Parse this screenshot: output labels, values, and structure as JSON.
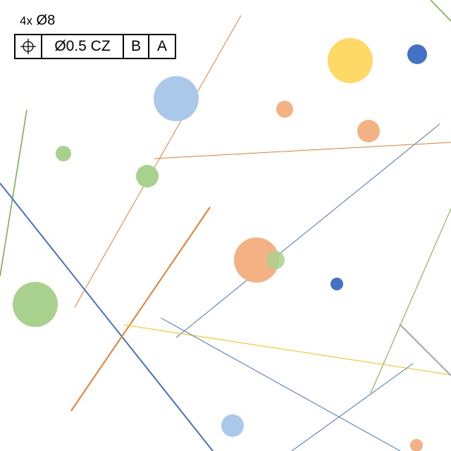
{
  "feature_control": {
    "count_prefix": "4x",
    "feature_size": "Ø8",
    "characteristic_symbol": "position-icon",
    "tolerance": "Ø0.5 CZ",
    "datum_primary": "B",
    "datum_secondary": "A"
  },
  "colors": {
    "blue_light": "#a9c8ea",
    "blue_dark": "#4472c4",
    "orange_light": "#f4b183",
    "orange": "#ed7d31",
    "green_light": "#a9d18e",
    "green": "#70ad47",
    "yellow": "#ffd966",
    "yellow_line": "#ffc000",
    "gray": "#a5a5a5"
  }
}
